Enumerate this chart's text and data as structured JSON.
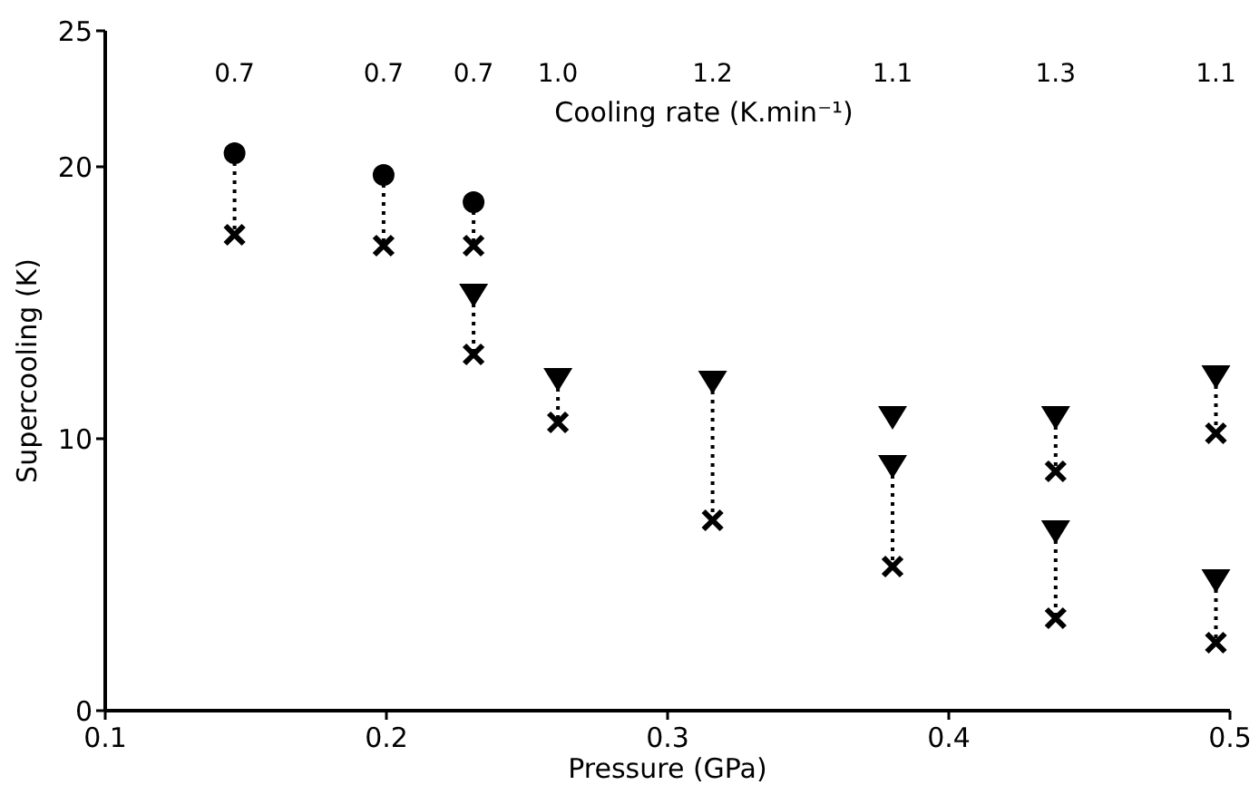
{
  "chart_data": {
    "type": "scatter",
    "xlabel": "Pressure (GPa)",
    "ylabel": "Supercooling (K)",
    "xlim": [
      0.1,
      0.5
    ],
    "xticks": [
      0.1,
      0.2,
      0.3,
      0.4,
      0.5
    ],
    "ylim": [
      0,
      25
    ],
    "yticks": [
      0,
      10,
      20,
      25
    ],
    "grid": false,
    "annotations": [
      "0.7",
      "0.7",
      "0.7",
      "1.0",
      "1.2",
      "1.1",
      "1.3",
      "1.1",
      "Cooling rate (K.min⁻¹)"
    ],
    "series": [
      {
        "type": "line",
        "line_style": "dotted",
        "marker": "none",
        "color": "#000000",
        "x": [
          0.146,
          0.146
        ],
        "values": [
          20.5,
          17.5
        ]
      },
      {
        "type": "line",
        "line_style": "dotted",
        "marker": "none",
        "color": "#000000",
        "x": [
          0.199,
          0.199
        ],
        "values": [
          19.7,
          17.1
        ]
      },
      {
        "type": "line",
        "line_style": "dotted",
        "marker": "none",
        "color": "#000000",
        "x": [
          0.231,
          0.231
        ],
        "values": [
          18.7,
          17.1
        ]
      },
      {
        "type": "line",
        "line_style": "dotted",
        "marker": "none",
        "color": "#000000",
        "x": [
          0.231,
          0.231
        ],
        "values": [
          15.3,
          13.1
        ]
      },
      {
        "type": "line",
        "line_style": "dotted",
        "marker": "none",
        "color": "#000000",
        "x": [
          0.261,
          0.261
        ],
        "values": [
          12.2,
          10.6
        ]
      },
      {
        "type": "line",
        "line_style": "dotted",
        "marker": "none",
        "color": "#000000",
        "x": [
          0.316,
          0.316
        ],
        "values": [
          12.1,
          7.0
        ]
      },
      {
        "type": "line",
        "line_style": "dotted",
        "marker": "none",
        "color": "#000000",
        "x": [
          0.38,
          0.38
        ],
        "values": [
          9.0,
          5.3
        ]
      },
      {
        "type": "line",
        "line_style": "dotted",
        "marker": "none",
        "color": "#000000",
        "x": [
          0.438,
          0.438
        ],
        "values": [
          10.8,
          8.8
        ]
      },
      {
        "type": "line",
        "line_style": "dotted",
        "marker": "none",
        "color": "#000000",
        "x": [
          0.438,
          0.438
        ],
        "values": [
          6.6,
          3.4
        ]
      },
      {
        "type": "line",
        "line_style": "dotted",
        "marker": "none",
        "color": "#000000",
        "x": [
          0.495,
          0.495
        ],
        "values": [
          12.3,
          10.2
        ]
      },
      {
        "type": "line",
        "line_style": "dotted",
        "marker": "none",
        "color": "#000000",
        "x": [
          0.495,
          0.495
        ],
        "values": [
          4.8,
          2.5
        ]
      },
      {
        "marker": "circle",
        "color": "#000000",
        "x": [
          0.146,
          0.199,
          0.231
        ],
        "values": [
          20.5,
          19.7,
          18.7
        ]
      },
      {
        "marker": "triangle",
        "color": "#000000",
        "x": [
          0.231,
          0.261,
          0.316,
          0.38,
          0.38,
          0.438,
          0.438,
          0.495,
          0.495
        ],
        "values": [
          15.3,
          12.2,
          12.1,
          10.8,
          9.0,
          10.8,
          6.6,
          12.3,
          4.8
        ]
      },
      {
        "marker": "cross",
        "color": "#000000",
        "x": [
          0.146,
          0.199,
          0.231,
          0.231,
          0.261,
          0.316,
          0.38,
          0.438,
          0.438,
          0.495,
          0.495
        ],
        "values": [
          17.5,
          17.1,
          17.1,
          13.1,
          10.6,
          7.0,
          5.3,
          8.8,
          3.4,
          10.2,
          2.5
        ]
      }
    ]
  }
}
